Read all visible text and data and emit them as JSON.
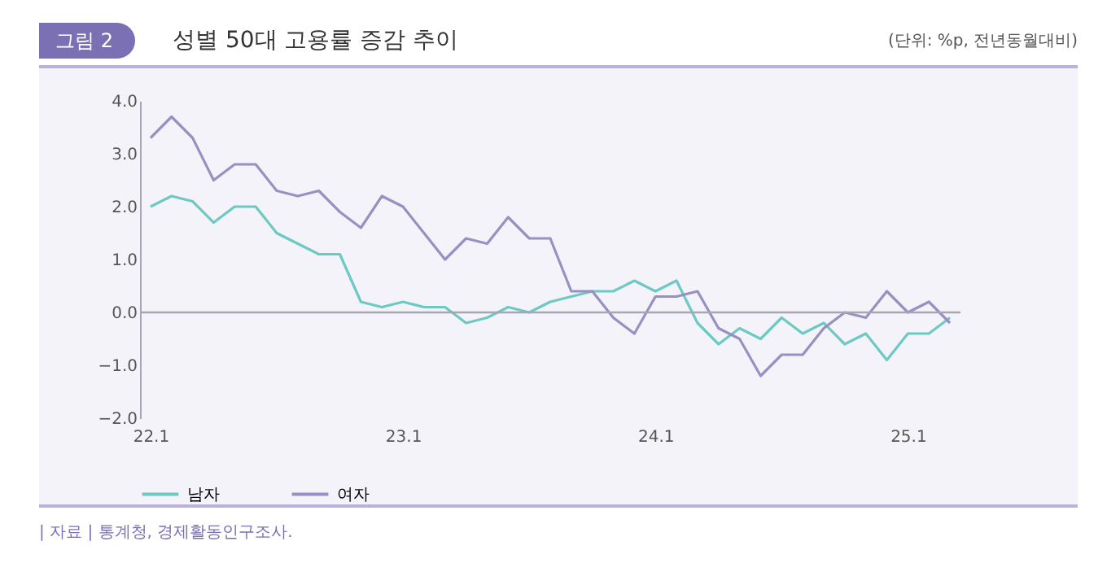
{
  "chart_data": {
    "type": "line",
    "title": "성별 50대 고용률 증감 추이",
    "subtitle": "(단위: %p, 전년동월대비)",
    "annotations": [
      "그림 2",
      "| 자료 | 통계청, 경제활동인구조사."
    ],
    "categories": [
      "22.1",
      null,
      null,
      null,
      null,
      null,
      null,
      null,
      null,
      null,
      null,
      null,
      "23.1",
      null,
      null,
      null,
      null,
      null,
      null,
      null,
      null,
      null,
      null,
      null,
      "24.1",
      null,
      null,
      null,
      null,
      null,
      null,
      null,
      null,
      null,
      null,
      null,
      "25.1",
      null,
      null
    ],
    "series": [
      {
        "name": "남자",
        "color": "#6cc9c3",
        "values": [
          2.0,
          2.2,
          2.1,
          1.7,
          2.0,
          2.0,
          1.5,
          1.3,
          1.1,
          1.1,
          0.2,
          0.1,
          0.2,
          0.1,
          0.1,
          -0.2,
          -0.1,
          0.1,
          0.0,
          0.2,
          0.3,
          0.4,
          0.4,
          0.6,
          0.4,
          0.6,
          -0.2,
          -0.6,
          -0.3,
          -0.5,
          -0.1,
          -0.4,
          -0.2,
          -0.6,
          -0.4,
          -0.9,
          -0.4,
          -0.4,
          -0.1
        ]
      },
      {
        "name": "여자",
        "color": "#9a8fc2",
        "values": [
          3.3,
          3.7,
          3.3,
          2.5,
          2.8,
          2.8,
          2.3,
          2.2,
          2.3,
          1.9,
          1.6,
          2.2,
          2.0,
          1.5,
          1.0,
          1.4,
          1.3,
          1.8,
          1.4,
          1.4,
          0.4,
          0.4,
          -0.1,
          -0.4,
          0.3,
          0.3,
          0.4,
          -0.3,
          -0.5,
          -1.2,
          -0.8,
          -0.8,
          -0.3,
          0.0,
          -0.1,
          0.4,
          0.0,
          0.2,
          -0.2
        ]
      }
    ],
    "ylim": [
      -2,
      4
    ],
    "yticks": [
      {
        "value": -2,
        "label": "−2.0"
      },
      {
        "value": -1,
        "label": "−1.0"
      },
      {
        "value": 0,
        "label": "0.0"
      },
      {
        "value": 1,
        "label": "1.0"
      },
      {
        "value": 2,
        "label": "2.0"
      },
      {
        "value": 3,
        "label": "3.0"
      },
      {
        "value": 4,
        "label": "4.0"
      }
    ],
    "ref_lines": [
      {
        "axis": "y",
        "value": 0,
        "color": "#a9a6b4"
      }
    ],
    "grid": false,
    "legend": "bottom",
    "marker": "none",
    "line_style": "solid"
  }
}
